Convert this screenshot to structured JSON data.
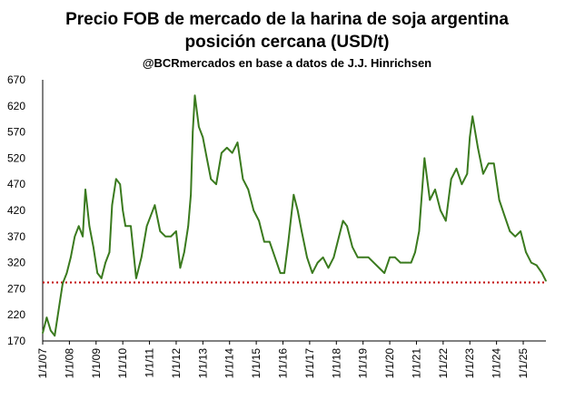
{
  "chart_data": {
    "type": "line",
    "title": "Precio FOB de mercado de la harina de soja argentina",
    "subtitle": "posición cercana (USD/t)",
    "source": "@BCRmercados en base a datos de J.J. Hinrichsen",
    "xlabel": "",
    "ylabel": "",
    "ylim": [
      170,
      670
    ],
    "y_ticks": [
      "670",
      "620",
      "570",
      "520",
      "470",
      "420",
      "370",
      "320",
      "270",
      "220",
      "170"
    ],
    "x_ticks": [
      "1/1/07",
      "1/1/08",
      "1/1/09",
      "1/1/10",
      "1/1/11",
      "1/1/12",
      "1/1/13",
      "1/1/14",
      "1/1/15",
      "1/1/16",
      "1/1/17",
      "1/1/18",
      "1/1/19",
      "1/1/20",
      "1/1/21",
      "1/1/22",
      "1/1/23",
      "1/1/24",
      "1/1/25"
    ],
    "x_range": [
      2007.0,
      2025.85
    ],
    "grid": false,
    "reference_line": {
      "value": 282,
      "color": "#c00000",
      "style": "dotted"
    },
    "series": [
      {
        "color": "#3a7a1e",
        "x": [
          2007.0,
          2007.15,
          2007.3,
          2007.45,
          2007.6,
          2007.75,
          2007.9,
          2008.05,
          2008.2,
          2008.35,
          2008.5,
          2008.6,
          2008.75,
          2008.9,
          2009.05,
          2009.2,
          2009.35,
          2009.5,
          2009.6,
          2009.75,
          2009.9,
          2010.0,
          2010.1,
          2010.3,
          2010.5,
          2010.7,
          2010.9,
          2011.05,
          2011.2,
          2011.4,
          2011.6,
          2011.8,
          2012.0,
          2012.15,
          2012.3,
          2012.45,
          2012.55,
          2012.62,
          2012.7,
          2012.85,
          2013.0,
          2013.15,
          2013.3,
          2013.5,
          2013.7,
          2013.9,
          2014.1,
          2014.3,
          2014.5,
          2014.7,
          2014.9,
          2015.1,
          2015.3,
          2015.5,
          2015.7,
          2015.9,
          2016.05,
          2016.2,
          2016.4,
          2016.55,
          2016.7,
          2016.9,
          2017.1,
          2017.3,
          2017.5,
          2017.7,
          2017.9,
          2018.1,
          2018.25,
          2018.4,
          2018.6,
          2018.8,
          2019.0,
          2019.2,
          2019.4,
          2019.6,
          2019.8,
          2020.0,
          2020.2,
          2020.4,
          2020.6,
          2020.8,
          2020.95,
          2021.1,
          2021.3,
          2021.5,
          2021.7,
          2021.9,
          2022.1,
          2022.3,
          2022.5,
          2022.7,
          2022.9,
          2023.0,
          2023.1,
          2023.3,
          2023.5,
          2023.7,
          2023.9,
          2024.1,
          2024.3,
          2024.5,
          2024.7,
          2024.9,
          2025.1,
          2025.3,
          2025.5,
          2025.7,
          2025.85
        ],
        "y": [
          185,
          215,
          190,
          180,
          230,
          280,
          300,
          330,
          370,
          390,
          370,
          460,
          390,
          350,
          300,
          290,
          320,
          340,
          430,
          480,
          470,
          420,
          390,
          390,
          290,
          330,
          390,
          410,
          430,
          380,
          370,
          370,
          380,
          310,
          340,
          390,
          450,
          570,
          640,
          580,
          560,
          520,
          480,
          470,
          530,
          540,
          530,
          550,
          480,
          460,
          420,
          400,
          360,
          360,
          330,
          300,
          300,
          360,
          450,
          420,
          380,
          330,
          300,
          320,
          330,
          310,
          330,
          370,
          400,
          390,
          350,
          330,
          330,
          330,
          320,
          310,
          300,
          330,
          330,
          320,
          320,
          320,
          340,
          380,
          520,
          440,
          460,
          420,
          400,
          480,
          500,
          470,
          490,
          560,
          600,
          540,
          490,
          510,
          510,
          440,
          410,
          380,
          370,
          380,
          340,
          320,
          315,
          300,
          285
        ]
      }
    ]
  }
}
